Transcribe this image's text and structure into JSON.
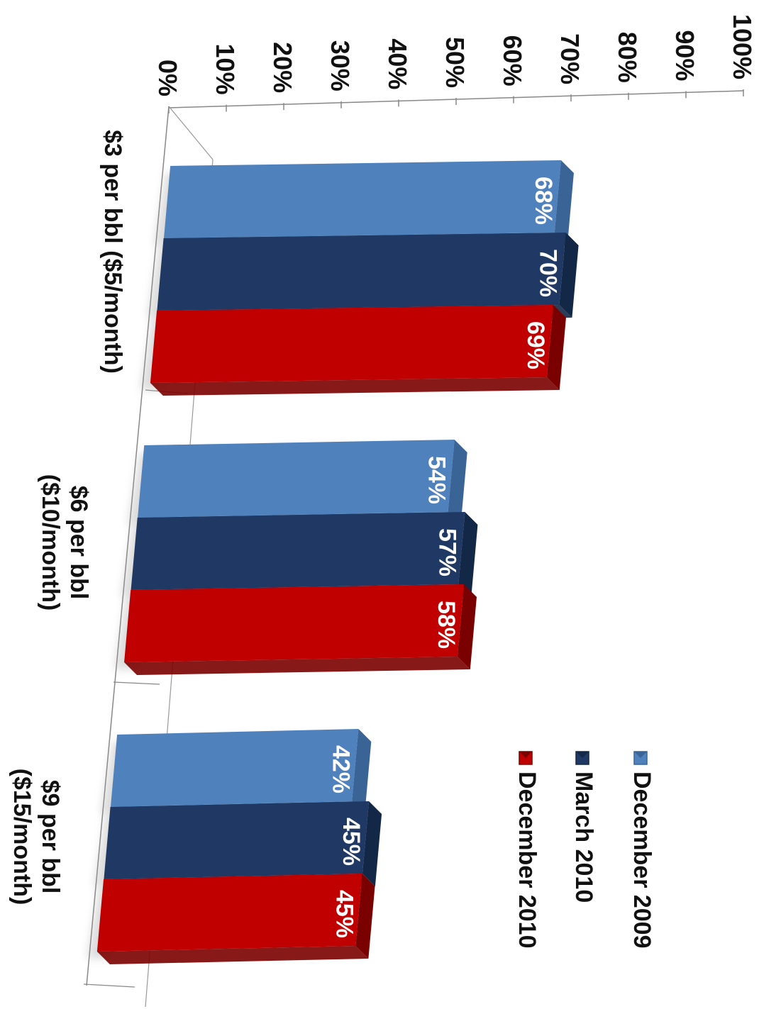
{
  "chart_data": {
    "type": "bar",
    "orientation": "horizontal-3d-rotated",
    "categories": [
      "$3 per bbl ($5/month)",
      "$6 per bbl ($10/month)",
      "$9 per bbl ($15/month)"
    ],
    "category_label_lines": [
      [
        "$3 per bbl ($5/month)"
      ],
      [
        "$6 per bbl",
        "($10/month)"
      ],
      [
        "$9 per bbl",
        "($15/month)"
      ]
    ],
    "series": [
      {
        "name": "December 2009",
        "values": [
          68,
          54,
          42
        ],
        "labels": [
          "68%",
          "54%",
          "42%"
        ],
        "color": "#4f81bd",
        "top_color": "#5b8fd0",
        "side_color": "#3a6496"
      },
      {
        "name": "March 2010",
        "values": [
          70,
          57,
          45
        ],
        "labels": [
          "70%",
          "57%",
          "45%"
        ],
        "color": "#1f3864",
        "top_color": "#2a4a80",
        "side_color": "#132746"
      },
      {
        "name": "December 2010",
        "values": [
          69,
          58,
          45
        ],
        "labels": [
          "69%",
          "58%",
          "45%"
        ],
        "color": "#c00000",
        "top_color": "#d41a1a",
        "side_color": "#7a0000"
      }
    ],
    "value_axis": {
      "min": 0,
      "max": 100,
      "step": 10,
      "tick_labels": [
        "0%",
        "10%",
        "20%",
        "30%",
        "40%",
        "50%",
        "60%",
        "70%",
        "80%",
        "90%",
        "100%"
      ]
    },
    "legend": {
      "placement": "right"
    },
    "title": "",
    "xlabel": "",
    "ylabel": ""
  }
}
